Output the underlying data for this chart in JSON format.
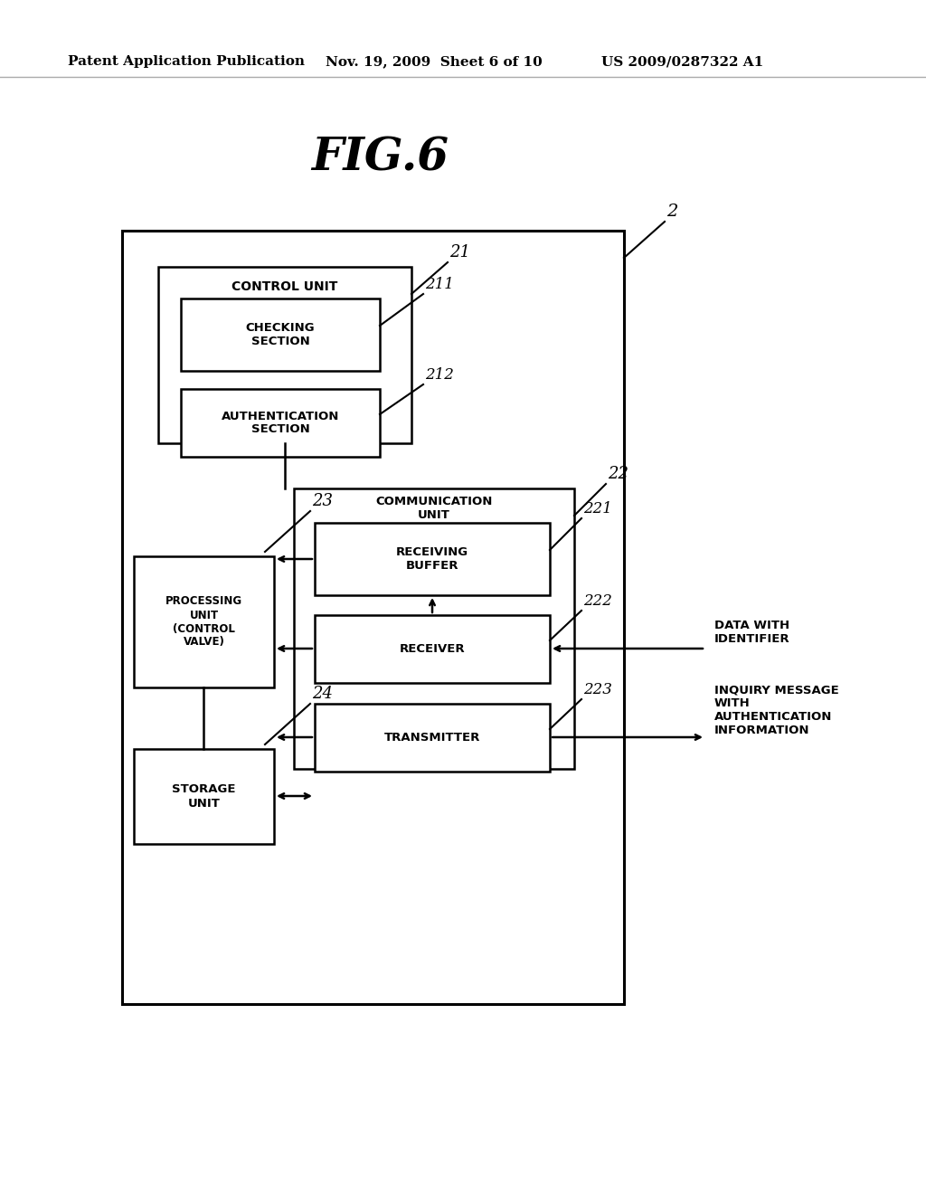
{
  "bg_color": "#ffffff",
  "header_left": "Patent Application Publication",
  "header_mid": "Nov. 19, 2009  Sheet 6 of 10",
  "header_right": "US 2009/0287322 A1",
  "fig_title": "FIG.6",
  "data_with_id_text": "DATA WITH\nIDENTIFIER",
  "inquiry_msg_text": "INQUIRY MESSAGE\nWITH\nAUTHENTICATION\nINFORMATION"
}
